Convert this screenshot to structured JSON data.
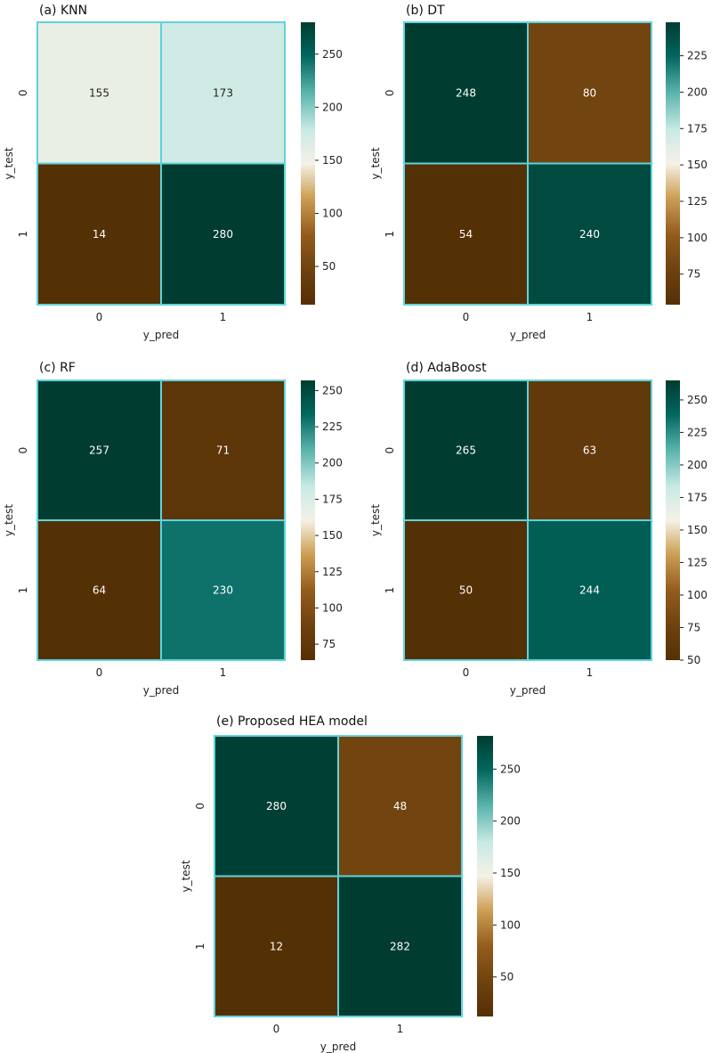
{
  "chart_data": [
    {
      "type": "heatmap",
      "title": "(a) KNN",
      "xlabel": "y_pred",
      "ylabel": "y_test",
      "x_categories": [
        "0",
        "1"
      ],
      "y_categories": [
        "0",
        "1"
      ],
      "values": [
        [
          155,
          173
        ],
        [
          14,
          280
        ]
      ],
      "colorbar": {
        "range": [
          14,
          280
        ],
        "ticks": [
          50,
          100,
          150,
          200,
          250
        ]
      }
    },
    {
      "type": "heatmap",
      "title": "(b) DT",
      "xlabel": "y_pred",
      "ylabel": "y_test",
      "x_categories": [
        "0",
        "1"
      ],
      "y_categories": [
        "0",
        "1"
      ],
      "values": [
        [
          248,
          80
        ],
        [
          54,
          240
        ]
      ],
      "colorbar": {
        "range": [
          54,
          248
        ],
        "ticks": [
          75,
          100,
          125,
          150,
          175,
          200,
          225
        ]
      }
    },
    {
      "type": "heatmap",
      "title": "(c) RF",
      "xlabel": "y_pred",
      "ylabel": "y_test",
      "x_categories": [
        "0",
        "1"
      ],
      "y_categories": [
        "0",
        "1"
      ],
      "values": [
        [
          257,
          71
        ],
        [
          64,
          230
        ]
      ],
      "colorbar": {
        "range": [
          64,
          257
        ],
        "ticks": [
          75,
          100,
          125,
          150,
          175,
          200,
          225,
          250
        ]
      }
    },
    {
      "type": "heatmap",
      "title": "(d) AdaBoost",
      "xlabel": "y_pred",
      "ylabel": "y_test",
      "x_categories": [
        "0",
        "1"
      ],
      "y_categories": [
        "0",
        "1"
      ],
      "values": [
        [
          265,
          63
        ],
        [
          50,
          244
        ]
      ],
      "colorbar": {
        "range": [
          50,
          265
        ],
        "ticks": [
          50,
          75,
          100,
          125,
          150,
          175,
          200,
          225,
          250
        ]
      }
    },
    {
      "type": "heatmap",
      "title": "(e) Proposed HEA model",
      "xlabel": "y_pred",
      "ylabel": "y_test",
      "x_categories": [
        "0",
        "1"
      ],
      "y_categories": [
        "0",
        "1"
      ],
      "values": [
        [
          280,
          48
        ],
        [
          12,
          282
        ]
      ],
      "colorbar": {
        "range": [
          12,
          282
        ],
        "ticks": [
          50,
          100,
          150,
          200,
          250
        ]
      }
    }
  ],
  "style": {
    "colormap": "BrBG",
    "cell_border_color": "#5fd3dc",
    "text_light": "#ffffff",
    "text_dark": "#222222"
  }
}
